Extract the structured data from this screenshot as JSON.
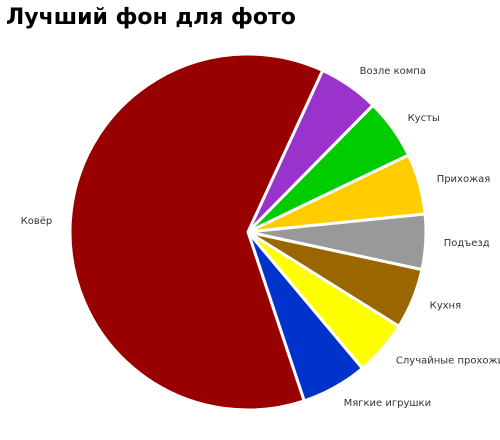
{
  "chart_data": {
    "type": "pie",
    "title": "Лучший фон для фото",
    "categories": [
      "Возле компа",
      "Кусты",
      "Прихожая",
      "Подъезд",
      "Кухня",
      "Случайные прохожие",
      "Мягкие игрушки",
      "Ковёр"
    ],
    "values": [
      5.5,
      5.5,
      5.5,
      5,
      5.5,
      5,
      6,
      62
    ],
    "colors": [
      "#9933cc",
      "#00cc00",
      "#ffcc00",
      "#999999",
      "#996600",
      "#ffff00",
      "#0033cc",
      "#990000"
    ]
  }
}
